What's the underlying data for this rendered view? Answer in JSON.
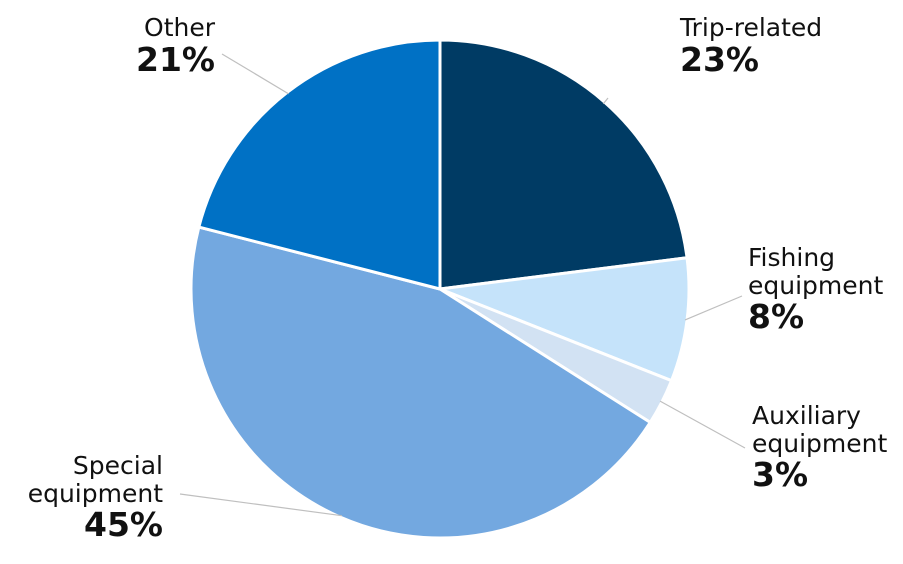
{
  "chart_data": {
    "type": "pie",
    "title": "",
    "slices": [
      {
        "label_lines": [
          "Trip-related"
        ],
        "percent_label": "23%",
        "value": 23,
        "color": "#003b64"
      },
      {
        "label_lines": [
          "Fishing",
          "equipment"
        ],
        "percent_label": "8%",
        "value": 8,
        "color": "#c5e3fa"
      },
      {
        "label_lines": [
          "Auxiliary",
          "equipment"
        ],
        "percent_label": "3%",
        "value": 3,
        "color": "#d2e2f3"
      },
      {
        "label_lines": [
          "Special",
          "equipment"
        ],
        "percent_label": "45%",
        "value": 45,
        "color": "#73a8e0"
      },
      {
        "label_lines": [
          "Other"
        ],
        "percent_label": "21%",
        "value": 21,
        "color": "#0071c5"
      }
    ],
    "legend": "none",
    "start_angle": "12 o'clock",
    "direction": "clockwise"
  }
}
